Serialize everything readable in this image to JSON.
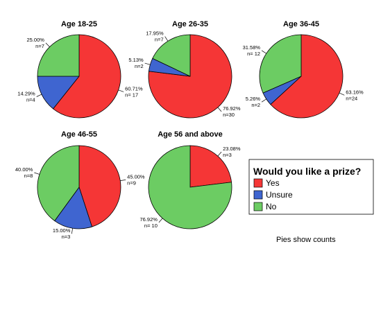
{
  "colors": {
    "Yes": "#f53636",
    "Unsure": "#3f65d0",
    "No": "#6ccc63"
  },
  "legend": {
    "title": "Would you like a prize?",
    "items": [
      "Yes",
      "Unsure",
      "No"
    ]
  },
  "note": "Pies show counts",
  "chart_data": [
    {
      "type": "pie",
      "title": "Age 18-25",
      "slices": [
        {
          "category": "Yes",
          "count": 17,
          "percent": "60.71%",
          "count_label": "n= 17"
        },
        {
          "category": "Unsure",
          "count": 4,
          "percent": "14.29%",
          "count_label": "n=4"
        },
        {
          "category": "No",
          "count": 7,
          "percent": "25.00%",
          "count_label": "n=7"
        }
      ]
    },
    {
      "type": "pie",
      "title": "Age 26-35",
      "slices": [
        {
          "category": "Yes",
          "count": 30,
          "percent": "76.92%",
          "count_label": "n=30"
        },
        {
          "category": "Unsure",
          "count": 2,
          "percent": "5.13%",
          "count_label": "n=2"
        },
        {
          "category": "No",
          "count": 7,
          "percent": "17.95%",
          "count_label": "n=7"
        }
      ]
    },
    {
      "type": "pie",
      "title": "Age 36-45",
      "slices": [
        {
          "category": "Yes",
          "count": 24,
          "percent": "63.16%",
          "count_label": "n=24"
        },
        {
          "category": "Unsure",
          "count": 2,
          "percent": "5.26%",
          "count_label": "n=2"
        },
        {
          "category": "No",
          "count": 12,
          "percent": "31.58%",
          "count_label": "n= 12"
        }
      ]
    },
    {
      "type": "pie",
      "title": "Age 46-55",
      "slices": [
        {
          "category": "Yes",
          "count": 9,
          "percent": "45.00%",
          "count_label": "n=9"
        },
        {
          "category": "Unsure",
          "count": 3,
          "percent": "15.00%",
          "count_label": "n=3"
        },
        {
          "category": "No",
          "count": 8,
          "percent": "40.00%",
          "count_label": "n=8"
        }
      ]
    },
    {
      "type": "pie",
      "title": "Age 56 and above",
      "slices": [
        {
          "category": "Yes",
          "count": 3,
          "percent": "23.08%",
          "count_label": "n=3"
        },
        {
          "category": "Unsure",
          "count": 0,
          "percent": "",
          "count_label": ""
        },
        {
          "category": "No",
          "count": 10,
          "percent": "76.92%",
          "count_label": "n= 10"
        }
      ]
    }
  ]
}
